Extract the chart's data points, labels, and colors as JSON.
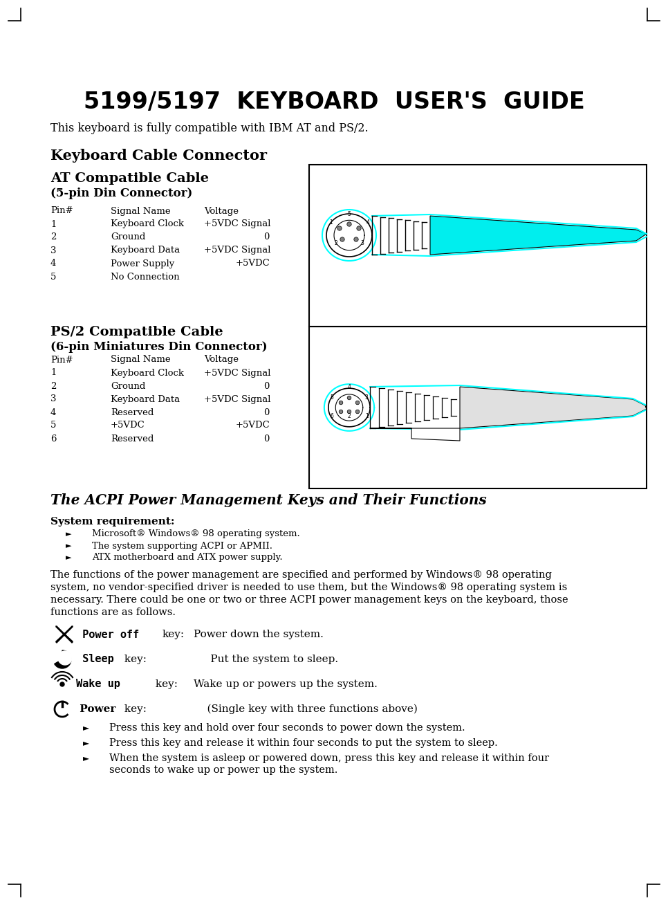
{
  "title": "5199/5197  KEYBOARD  USER'S  GUIDE",
  "subtitle": "This keyboard is fully compatible with IBM AT and PS/2.",
  "section1": "Keyboard Cable Connector",
  "at_title": "AT Compatible Cable",
  "at_subtitle": "(5-pin Din Connector)",
  "at_headers": [
    "Pin#",
    "Signal Name",
    "Voltage"
  ],
  "at_rows": [
    [
      "1",
      "Keyboard Clock",
      "+5VDC Signal"
    ],
    [
      "2",
      "Ground",
      "0"
    ],
    [
      "3",
      "Keyboard Data",
      "+5VDC Signal"
    ],
    [
      "4",
      "Power Supply",
      "+5VDC"
    ],
    [
      "5",
      "No Connection",
      ""
    ]
  ],
  "ps2_title": "PS/2 Compatible Cable",
  "ps2_subtitle": "(6-pin Miniatures Din Connector)",
  "ps2_headers": [
    "Pin#",
    "Signal Name",
    "Voltage"
  ],
  "ps2_rows": [
    [
      "1",
      "Keyboard Clock",
      "+5VDC Signal"
    ],
    [
      "2",
      "Ground",
      "0"
    ],
    [
      "3",
      "Keyboard Data",
      "+5VDC Signal"
    ],
    [
      "4",
      "Reserved",
      "0"
    ],
    [
      "5",
      "+5VDC",
      "+5VDC"
    ],
    [
      "6",
      "Reserved",
      "0"
    ]
  ],
  "section2": "The ACPI Power Management Keys and Their Functions",
  "system_req_title": "System requirement:",
  "system_req_bullets": [
    "Microsoft® Windows® 98 operating system.",
    "The system supporting ACPI or APMII.",
    "ATX motherboard and ATX power supply."
  ],
  "para1": "The functions of the power management are specified and performed by Windows® 98 operating\nsystem, no vendor-specified driver is needed to use them, but the Windows® 98 operating system is\nnecessary. There could be one or two or three ACPI power management keys on the keyboard, those\nfunctions are as follows.",
  "power_bullets": [
    "Press this key and hold over four seconds to power down the system.",
    "Press this key and release it within four seconds to put the system to sleep.",
    "When the system is asleep or powered down, press this key and release it within four\nseconds to wake up or power up the system."
  ],
  "bg_color": "#ffffff",
  "text_color": "#000000"
}
